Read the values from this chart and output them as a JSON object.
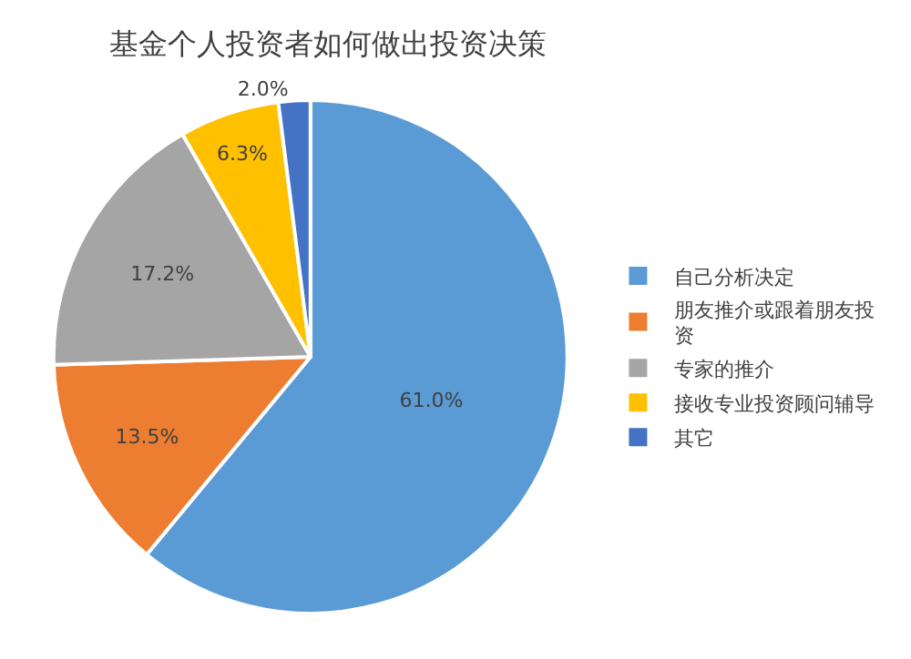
{
  "chart_data": {
    "type": "pie",
    "title": "基金个人投资者如何做出投资决策",
    "categories": [
      "自己分析决定",
      "朋友推介或跟着朋友投资",
      "专家的推介",
      "接收专业投资顾问辅导",
      "其它"
    ],
    "values": [
      61.0,
      13.5,
      17.2,
      6.3,
      2.0
    ],
    "value_labels": [
      "61.0%",
      "13.5%",
      "17.2%",
      "6.3%",
      "2.0%"
    ],
    "colors": [
      "#5b9bd5",
      "#ed7d31",
      "#a5a5a5",
      "#ffc000",
      "#4472c4"
    ],
    "legend": "right"
  }
}
